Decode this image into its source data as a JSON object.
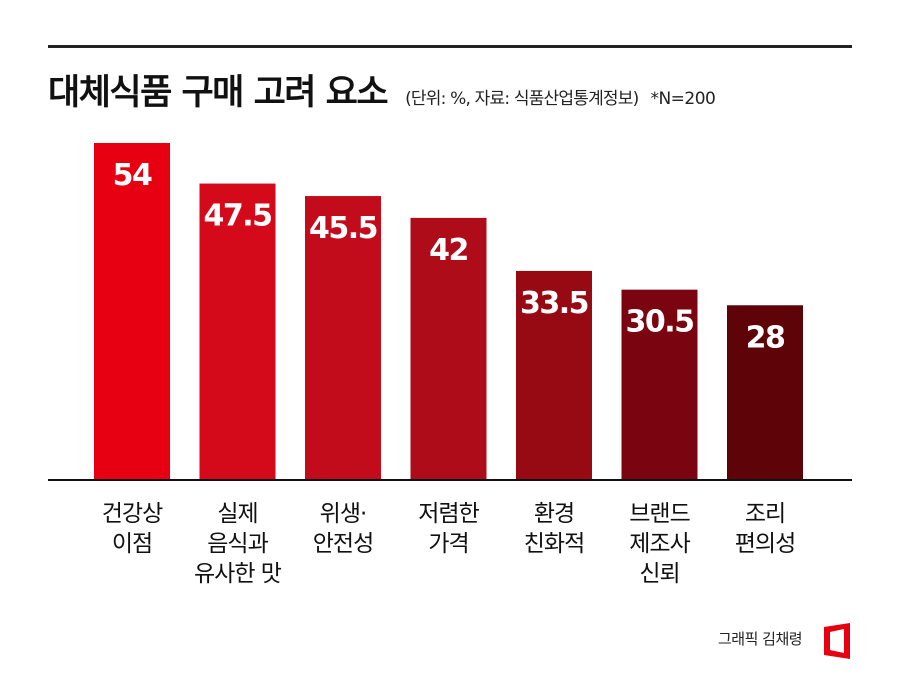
{
  "header": {
    "title": "대체식품 구매 고려 요소",
    "subtitle": "(단위: %, 자료: 식품산업통계정보)",
    "note": "*N=200"
  },
  "credit": "그래픽 김채령",
  "colors": {
    "bars": [
      "#e60012",
      "#d40a1a",
      "#c20c1c",
      "#ad0c18",
      "#970a14",
      "#7a0510",
      "#5e0409"
    ],
    "axis": "#111111",
    "logo": "#e60012"
  },
  "chart_data": {
    "type": "bar",
    "title": "대체식품 구매 고려 요소",
    "categories": [
      [
        "건강상",
        "이점"
      ],
      [
        "실제",
        "음식과",
        "유사한 맛"
      ],
      [
        "위생·",
        "안전성"
      ],
      [
        "저렴한",
        "가격"
      ],
      [
        "환경",
        "친화적"
      ],
      [
        "브랜드",
        "제조사",
        "신뢰"
      ],
      [
        "조리",
        "편의성"
      ]
    ],
    "values": [
      54,
      47.5,
      45.5,
      42,
      33.5,
      30.5,
      28
    ],
    "value_labels": [
      "54",
      "47.5",
      "45.5",
      "42",
      "33.5",
      "30.5",
      "28"
    ],
    "ylim": [
      0,
      54
    ],
    "grid": false,
    "legend": "none"
  }
}
